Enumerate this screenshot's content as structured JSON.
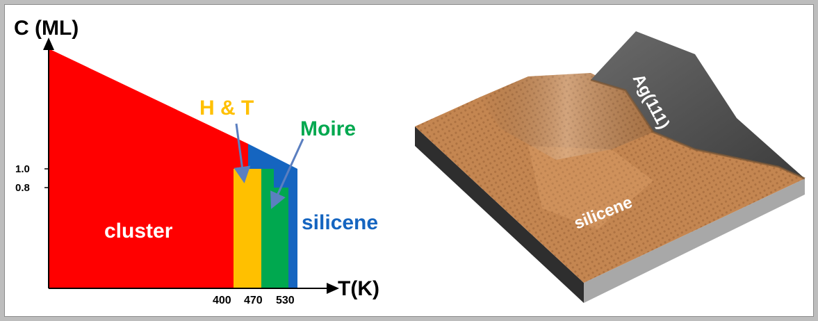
{
  "left_panel": {
    "y_axis_label": "C (ML)",
    "x_axis_label": "T(K)",
    "y_ticks": [
      "1.0",
      "0.8"
    ],
    "x_ticks": [
      "400",
      "470",
      "530"
    ],
    "regions": [
      {
        "name": "cluster",
        "color": "#ff0000"
      },
      {
        "name": "silicene",
        "color": "#1565c0"
      },
      {
        "name": "H & T",
        "color": "#ffc000"
      },
      {
        "name": "Moire",
        "color": "#00a84f"
      }
    ],
    "labels": {
      "cluster": "cluster",
      "silicene": "silicene",
      "ht": "H & T",
      "moire": "Moire"
    },
    "label_colors": {
      "cluster": "#ffffff",
      "silicene": "#1565c0",
      "ht": "#ffc000",
      "moire": "#00a84f"
    }
  },
  "right_panel": {
    "labels": {
      "silicene": "silicene",
      "substrate": "Ag(111)"
    },
    "colors": {
      "silicene": "#c48651",
      "substrate": "#4a4a4a",
      "base": "#3a3a3a"
    }
  }
}
